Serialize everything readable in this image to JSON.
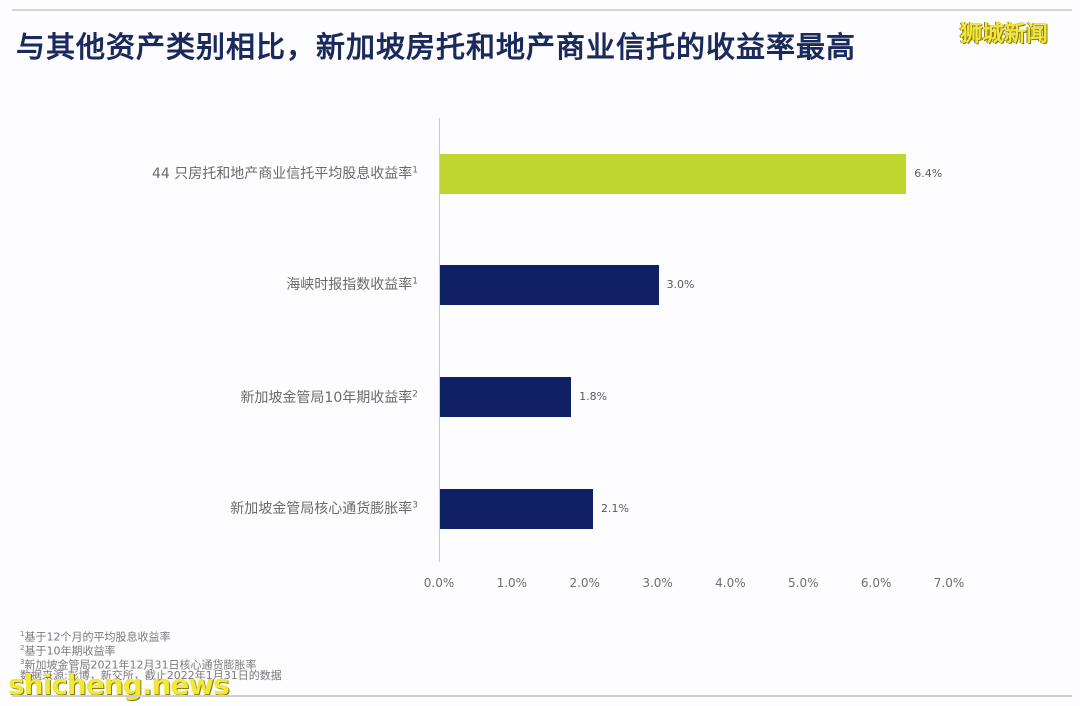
{
  "title": "与其他资产类别相比，新加坡房托和地产商业信托的收益率最高",
  "watermarks": {
    "top_right": "狮城新闻",
    "bottom_left": "shicheng.news"
  },
  "colors": {
    "highlight_bar": "#bfd630",
    "standard_bar": "#0f2063",
    "title": "#1b2a5c"
  },
  "chart_data": {
    "type": "bar",
    "orientation": "horizontal",
    "title": "与其他资产类别相比，新加坡房托和地产商业信托的收益率最高",
    "categories": [
      "44 只房托和地产商业信托平均股息收益率",
      "海峡时报指数收益率",
      "新加坡金管局10年期收益率",
      "新加坡金管局核心通货膨胀率"
    ],
    "category_footnotes": [
      "1",
      "1",
      "2",
      "3"
    ],
    "values": [
      6.4,
      3.0,
      1.8,
      2.1
    ],
    "value_labels": [
      "6.4%",
      "3.0%",
      "1.8%",
      "2.1%"
    ],
    "bar_colors": [
      "#bfd630",
      "#0f2063",
      "#0f2063",
      "#0f2063"
    ],
    "xlabel": "",
    "ylabel": "",
    "xlim": [
      0,
      7
    ],
    "x_ticks": [
      "0.0%",
      "1.0%",
      "2.0%",
      "3.0%",
      "4.0%",
      "5.0%",
      "6.0%",
      "7.0%"
    ],
    "grid": false,
    "legend": null
  },
  "footnotes": [
    {
      "mark": "1",
      "text": "基于12个月的平均股息收益率"
    },
    {
      "mark": "2",
      "text": "基于10年期收益率"
    },
    {
      "mark": "3",
      "text": "新加坡金管局2021年12月31日核心通货膨胀率"
    },
    {
      "mark": "",
      "text": "数据来源:彭博，新交所，截止2022年1月31日的数据"
    }
  ]
}
